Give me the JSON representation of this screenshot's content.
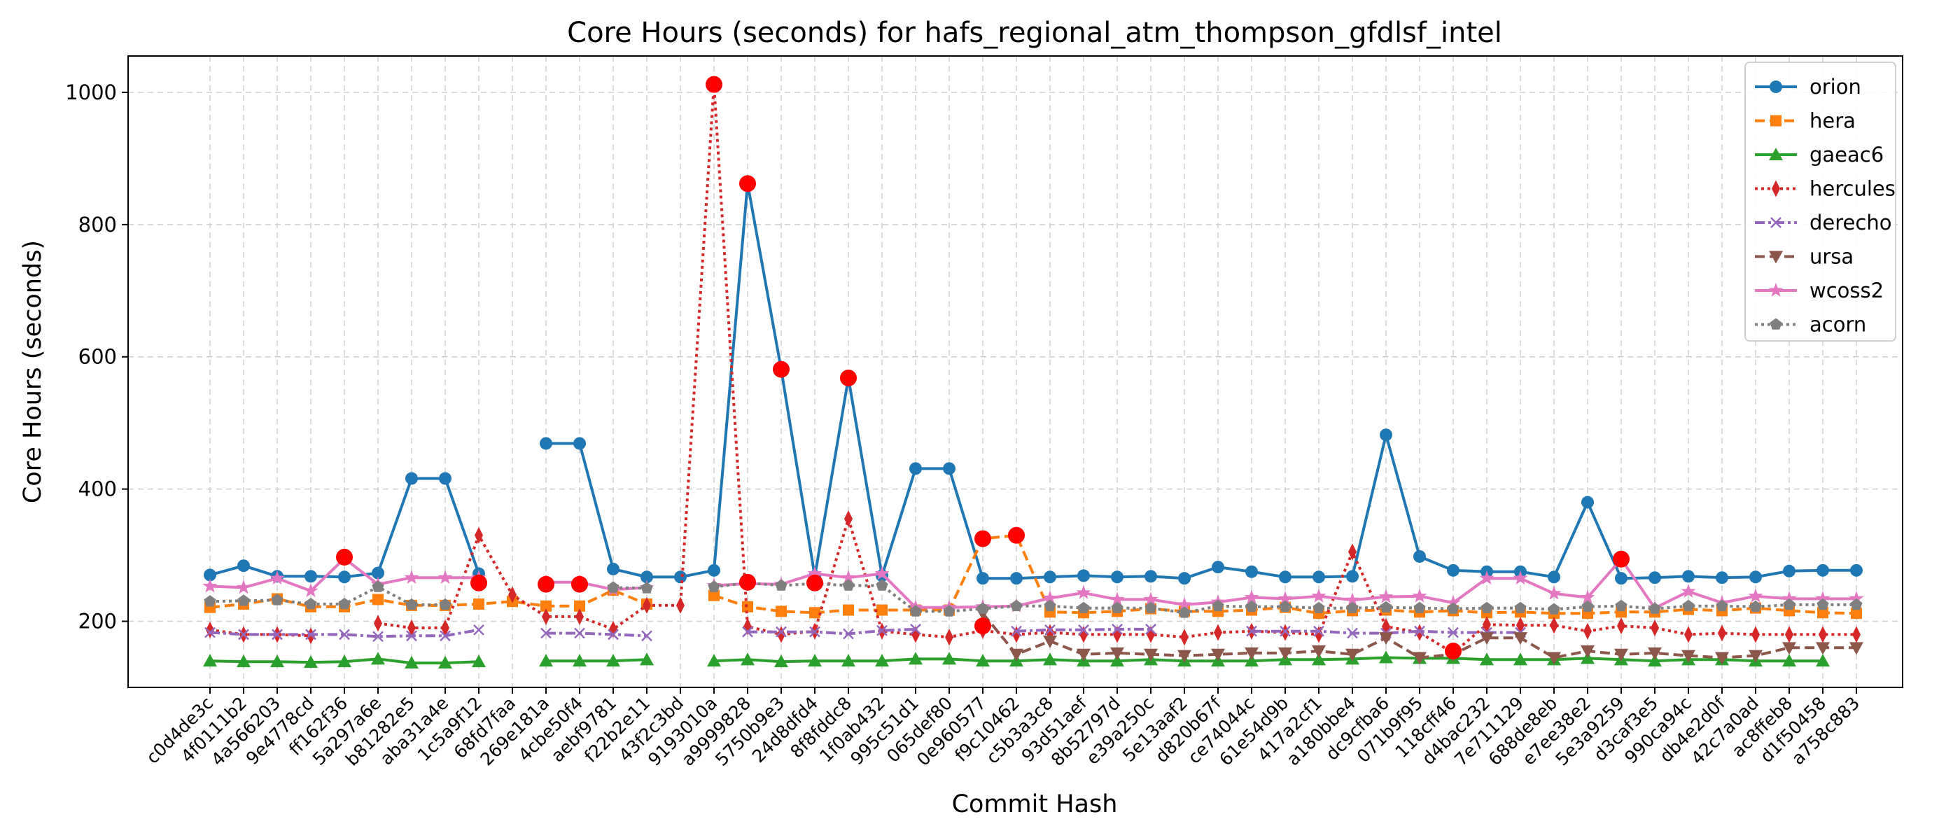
{
  "chart_data": {
    "type": "line",
    "title": "Core Hours (seconds) for hafs_regional_atm_thompson_gfdlsf_intel",
    "xlabel": "Commit Hash",
    "ylabel": "Core Hours (seconds)",
    "ylim": [
      100,
      1055
    ],
    "yticks": [
      "200",
      "400",
      "600",
      "800",
      "1000"
    ],
    "grid": true,
    "legend_position": "top-right",
    "categories": [
      "c0d4de3c",
      "4f0111b2",
      "4a566203",
      "9e4778cd",
      "ff162f36",
      "5a297a6e",
      "b81282e5",
      "aba31a4e",
      "1c5a9f12",
      "68fd7faa",
      "269e181a",
      "4cbe50f4",
      "aebf9781",
      "f22b2e11",
      "43f2c3bd",
      "9193010a",
      "a9999828",
      "5750b9e3",
      "24d8dfd4",
      "8f8fddc8",
      "1f0ab432",
      "995c51d1",
      "065def80",
      "0e960577",
      "f9c10462",
      "c5b3a3c8",
      "93d51aef",
      "8b52797d",
      "e39a250c",
      "5e13aaf2",
      "d820b67f",
      "ce74044c",
      "61e54d9b",
      "417a2cf1",
      "a180bbe4",
      "dc9cfba6",
      "071b9f95",
      "118cff46",
      "d4bac232",
      "7e711129",
      "688de8eb",
      "e7ee38e2",
      "5e3a9259",
      "d3caf3e5",
      "990ca94c",
      "db4e2d0f",
      "42c7a0ad",
      "ac8ffeb8",
      "d1f50458",
      "a758c883"
    ],
    "series": [
      {
        "name": "orion",
        "color": "#1f77b4",
        "dash": "solid",
        "marker": "circle",
        "values": [
          270,
          284,
          268,
          268,
          267,
          273,
          416,
          416,
          272,
          null,
          469,
          469,
          279,
          267,
          267,
          277,
          862,
          581,
          268,
          568,
          269,
          431,
          431,
          265,
          265,
          267,
          269,
          267,
          268,
          265,
          282,
          275,
          267,
          267,
          268,
          482,
          298,
          277,
          275,
          275,
          267,
          380,
          265,
          266,
          268,
          266,
          267,
          276,
          277,
          277
        ]
      },
      {
        "name": "hera",
        "color": "#ff7f0e",
        "dash": "dashed",
        "marker": "square",
        "values": [
          221,
          226,
          234,
          222,
          222,
          233,
          224,
          224,
          226,
          230,
          223,
          223,
          247,
          226,
          null,
          239,
          222,
          215,
          213,
          217,
          217,
          217,
          217,
          325,
          330,
          214,
          213,
          215,
          219,
          215,
          215,
          217,
          221,
          212,
          216,
          217,
          214,
          216,
          213,
          214,
          212,
          212,
          214,
          214,
          218,
          216,
          220,
          216,
          213,
          212
        ]
      },
      {
        "name": "gaeac6",
        "color": "#2ca02c",
        "dash": "solid",
        "marker": "triangle",
        "values": [
          140,
          139,
          139,
          138,
          139,
          143,
          137,
          137,
          139,
          null,
          140,
          140,
          140,
          142,
          null,
          140,
          142,
          139,
          140,
          140,
          140,
          143,
          143,
          140,
          140,
          142,
          140,
          140,
          142,
          140,
          140,
          140,
          142,
          142,
          143,
          145,
          144,
          144,
          142,
          142,
          142,
          144,
          142,
          140,
          142,
          142,
          140,
          140,
          140,
          null
        ]
      },
      {
        "name": "hercules",
        "color": "#d62728",
        "dash": "dotted",
        "marker": "thin_diamond",
        "values": [
          187,
          180,
          180,
          178,
          null,
          197,
          190,
          190,
          330,
          240,
          207,
          207,
          188,
          224,
          224,
          1012,
          192,
          180,
          185,
          355,
          185,
          180,
          176,
          186,
          180,
          183,
          180,
          180,
          180,
          176,
          183,
          185,
          183,
          180,
          305,
          192,
          183,
          152,
          195,
          194,
          194,
          185,
          193,
          190,
          180,
          182,
          180,
          180,
          180,
          180
        ]
      },
      {
        "name": "derecho",
        "color": "#9467bd",
        "dash": "dashdot",
        "marker": "x",
        "values": [
          183,
          180,
          180,
          180,
          180,
          177,
          178,
          178,
          187,
          null,
          182,
          182,
          180,
          178,
          null,
          null,
          184,
          184,
          184,
          181,
          186,
          188,
          null,
          null,
          185,
          187,
          187,
          188,
          188,
          null,
          null,
          185,
          185,
          185,
          182,
          182,
          185,
          183,
          183,
          183,
          null,
          null,
          null,
          null,
          null,
          null,
          null,
          null,
          null,
          null
        ]
      },
      {
        "name": "ursa",
        "color": "#8c564b",
        "dash": "dashed",
        "marker": "triangle_down",
        "values": [
          null,
          null,
          null,
          null,
          null,
          null,
          null,
          null,
          null,
          null,
          null,
          null,
          null,
          null,
          null,
          null,
          null,
          null,
          null,
          null,
          null,
          null,
          null,
          212,
          150,
          170,
          150,
          152,
          150,
          148,
          150,
          152,
          152,
          155,
          150,
          175,
          145,
          150,
          175,
          175,
          145,
          155,
          150,
          152,
          148,
          145,
          148,
          160,
          160,
          160
        ]
      },
      {
        "name": "wcoss2",
        "color": "#e377c2",
        "dash": "solid",
        "marker": "star",
        "values": [
          253,
          251,
          265,
          246,
          295,
          256,
          266,
          266,
          266,
          null,
          259,
          259,
          248,
          251,
          null,
          254,
          257,
          256,
          272,
          266,
          272,
          221,
          221,
          222,
          223,
          235,
          243,
          233,
          233,
          225,
          229,
          236,
          234,
          238,
          232,
          237,
          238,
          228,
          265,
          265,
          242,
          236,
          294,
          220,
          245,
          228,
          238,
          234,
          234,
          234
        ]
      },
      {
        "name": "acorn",
        "color": "#7f7f7f",
        "dash": "dotted",
        "marker": "pentagon",
        "values": [
          230,
          231,
          232,
          226,
          226,
          252,
          225,
          225,
          null,
          null,
          null,
          null,
          251,
          250,
          null,
          252,
          258,
          254,
          257,
          254,
          254,
          215,
          215,
          219,
          223,
          223,
          220,
          220,
          220,
          213,
          223,
          222,
          222,
          220,
          220,
          221,
          220,
          219,
          220,
          220,
          218,
          222,
          223,
          219,
          223,
          223,
          222,
          225,
          225,
          225
        ]
      }
    ],
    "highlight_points": [
      {
        "x": "ff162f36",
        "y": 297
      },
      {
        "x": "1c5a9f12",
        "y": 258
      },
      {
        "x": "269e181a",
        "y": 256
      },
      {
        "x": "4cbe50f4",
        "y": 256
      },
      {
        "x": "9193010a",
        "y": 1012
      },
      {
        "x": "a9999828",
        "y": 862
      },
      {
        "x": "a9999828",
        "y": 259
      },
      {
        "x": "5750b9e3",
        "y": 581
      },
      {
        "x": "24d8dfd4",
        "y": 258
      },
      {
        "x": "8f8fddc8",
        "y": 568
      },
      {
        "x": "0e960577",
        "y": 325
      },
      {
        "x": "0e960577",
        "y": 193
      },
      {
        "x": "f9c10462",
        "y": 330
      },
      {
        "x": "118cff46",
        "y": 155
      },
      {
        "x": "5e3a9259",
        "y": 294
      }
    ]
  }
}
